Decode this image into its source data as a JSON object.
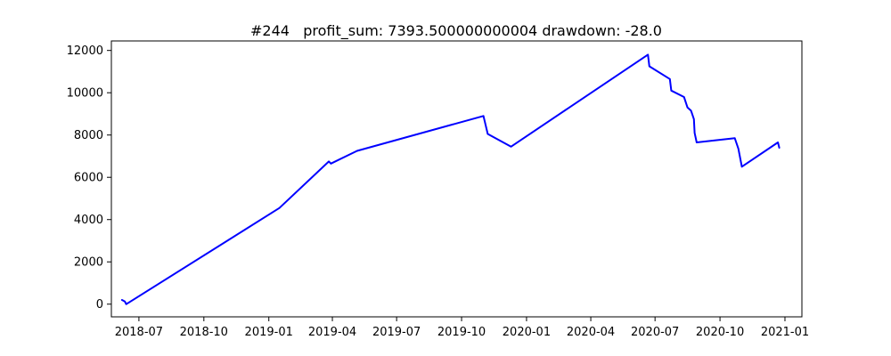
{
  "chart_data": {
    "type": "line",
    "title": "#244   profit_sum: 7393.500000000004 drawdown: -28.0",
    "xlabel": "",
    "ylabel": "",
    "x_axis_type": "date",
    "xlim": [
      "2018-05-23",
      "2021-01-25"
    ],
    "ylim": [
      -600,
      12450
    ],
    "grid": false,
    "x_ticks": [
      {
        "date": "2018-07-01",
        "label": "2018-07"
      },
      {
        "date": "2018-10-01",
        "label": "2018-10"
      },
      {
        "date": "2019-01-01",
        "label": "2019-01"
      },
      {
        "date": "2019-04-01",
        "label": "2019-04"
      },
      {
        "date": "2019-07-01",
        "label": "2019-07"
      },
      {
        "date": "2019-10-01",
        "label": "2019-10"
      },
      {
        "date": "2020-01-01",
        "label": "2020-01"
      },
      {
        "date": "2020-04-01",
        "label": "2020-04"
      },
      {
        "date": "2020-07-01",
        "label": "2020-07"
      },
      {
        "date": "2020-10-01",
        "label": "2020-10"
      },
      {
        "date": "2021-01-01",
        "label": "2021-01"
      }
    ],
    "y_ticks": [
      {
        "value": 0,
        "label": "0"
      },
      {
        "value": 2000,
        "label": "2000"
      },
      {
        "value": 4000,
        "label": "4000"
      },
      {
        "value": 6000,
        "label": "6000"
      },
      {
        "value": 8000,
        "label": "8000"
      },
      {
        "value": 10000,
        "label": "10000"
      },
      {
        "value": 12000,
        "label": "12000"
      }
    ],
    "series": [
      {
        "color": "#0000ff",
        "points": [
          {
            "x": "2018-06-07",
            "y": 200
          },
          {
            "x": "2018-06-11",
            "y": 130
          },
          {
            "x": "2018-06-13",
            "y": 0
          },
          {
            "x": "2018-06-16",
            "y": 60
          },
          {
            "x": "2019-01-16",
            "y": 4550
          },
          {
            "x": "2019-03-27",
            "y": 6750
          },
          {
            "x": "2019-03-30",
            "y": 6650
          },
          {
            "x": "2019-05-06",
            "y": 7250
          },
          {
            "x": "2019-11-01",
            "y": 8900
          },
          {
            "x": "2019-11-07",
            "y": 8050
          },
          {
            "x": "2019-12-10",
            "y": 7450
          },
          {
            "x": "2020-06-21",
            "y": 11800
          },
          {
            "x": "2020-06-23",
            "y": 11250
          },
          {
            "x": "2020-07-22",
            "y": 10650
          },
          {
            "x": "2020-07-24",
            "y": 10100
          },
          {
            "x": "2020-08-11",
            "y": 9800
          },
          {
            "x": "2020-08-16",
            "y": 9300
          },
          {
            "x": "2020-08-21",
            "y": 9150
          },
          {
            "x": "2020-08-25",
            "y": 8750
          },
          {
            "x": "2020-08-26",
            "y": 8100
          },
          {
            "x": "2020-08-29",
            "y": 7650
          },
          {
            "x": "2020-10-22",
            "y": 7850
          },
          {
            "x": "2020-10-27",
            "y": 7350
          },
          {
            "x": "2020-11-01",
            "y": 6500
          },
          {
            "x": "2020-12-22",
            "y": 7650
          },
          {
            "x": "2020-12-24",
            "y": 7400
          }
        ]
      }
    ]
  }
}
